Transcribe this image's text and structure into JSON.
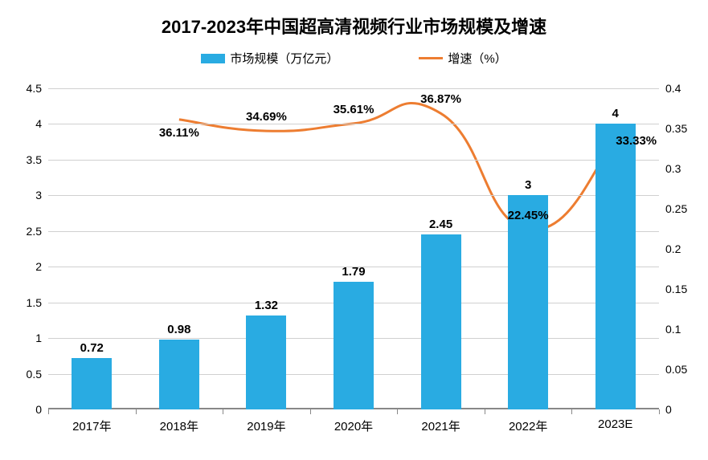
{
  "title": "2017-2023年中国超高清视频行业市场规模及增速",
  "title_fontsize": 22,
  "legend": {
    "bar_label": "市场规模（万亿元）",
    "line_label": "增速（%）"
  },
  "chart": {
    "type": "combo-bar-line",
    "categories": [
      "2017年",
      "2018年",
      "2019年",
      "2020年",
      "2021年",
      "2022年",
      "2023E"
    ],
    "bars": {
      "values": [
        0.72,
        0.98,
        1.32,
        1.79,
        2.45,
        3,
        4
      ],
      "labels": [
        "0.72",
        "0.98",
        "1.32",
        "1.79",
        "2.45",
        "3",
        "4"
      ],
      "color": "#29abe2",
      "bar_width_ratio": 0.46
    },
    "line": {
      "values": [
        null,
        0.3611,
        0.3469,
        0.3561,
        0.3687,
        0.2245,
        0.3333
      ],
      "labels": [
        null,
        "36.11%",
        "34.69%",
        "35.61%",
        "36.87%",
        "22.45%",
        "33.33%"
      ],
      "label_positions": [
        null,
        "below",
        "above",
        "above",
        "above",
        "above",
        "right"
      ],
      "color": "#ed7d31",
      "line_width": 3,
      "smooth": true
    },
    "y_left": {
      "min": 0,
      "max": 4.5,
      "step": 0.5,
      "ticks": [
        "0",
        "0.5",
        "1",
        "1.5",
        "2",
        "2.5",
        "3",
        "3.5",
        "4",
        "4.5"
      ]
    },
    "y_right": {
      "min": 0,
      "max": 0.4,
      "step": 0.05,
      "ticks": [
        "0",
        "0.05",
        "0.1",
        "0.15",
        "0.2",
        "0.25",
        "0.3",
        "0.35",
        "0.4"
      ]
    },
    "background_color": "#ffffff",
    "grid_color": "#d0d0d0",
    "axis_color": "#888888",
    "label_fontsize": 15
  }
}
